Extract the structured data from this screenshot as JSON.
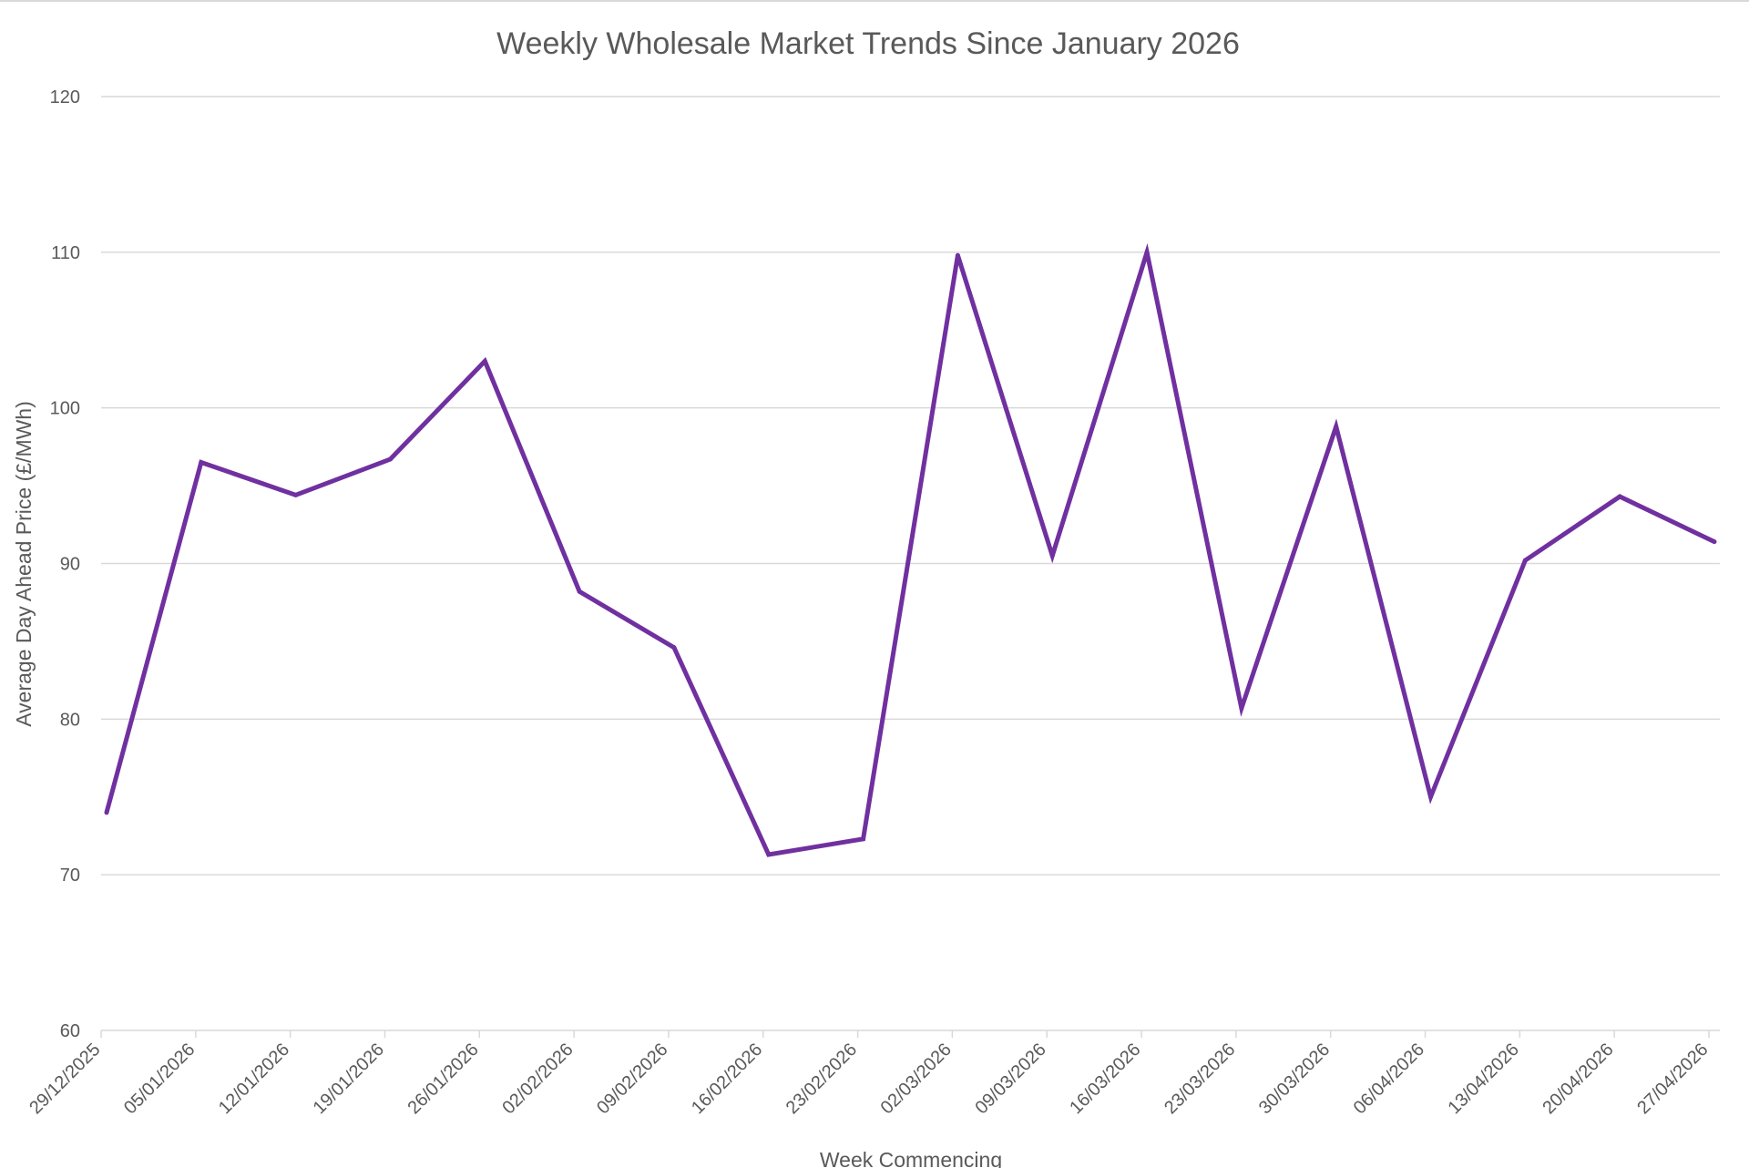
{
  "chart_data": {
    "type": "line",
    "title": "Weekly Wholesale Market Trends Since January 2026",
    "xlabel": "Week Commencing",
    "ylabel": "Average Day Ahead Price (£/MWh)",
    "ylim": [
      60,
      120
    ],
    "yticks": [
      "60",
      "70",
      "80",
      "90",
      "100",
      "110",
      "120"
    ],
    "grid": true,
    "legend": "none",
    "categories": [
      "29/12/2025",
      "05/01/2026",
      "12/01/2026",
      "19/01/2026",
      "26/01/2026",
      "02/02/2026",
      "09/02/2026",
      "16/02/2026",
      "23/02/2026",
      "02/03/2026",
      "09/03/2026",
      "16/03/2026",
      "23/03/2026",
      "30/03/2026",
      "06/04/2026",
      "13/04/2026",
      "20/04/2026",
      "27/04/2026"
    ],
    "series": [
      {
        "values": [
          74.0,
          96.5,
          94.4,
          96.7,
          103.0,
          88.2,
          84.6,
          71.3,
          72.3,
          109.8,
          90.5,
          110.0,
          80.7,
          98.8,
          75.0,
          90.2,
          94.3,
          91.4
        ],
        "color": "#7030a0"
      }
    ]
  }
}
